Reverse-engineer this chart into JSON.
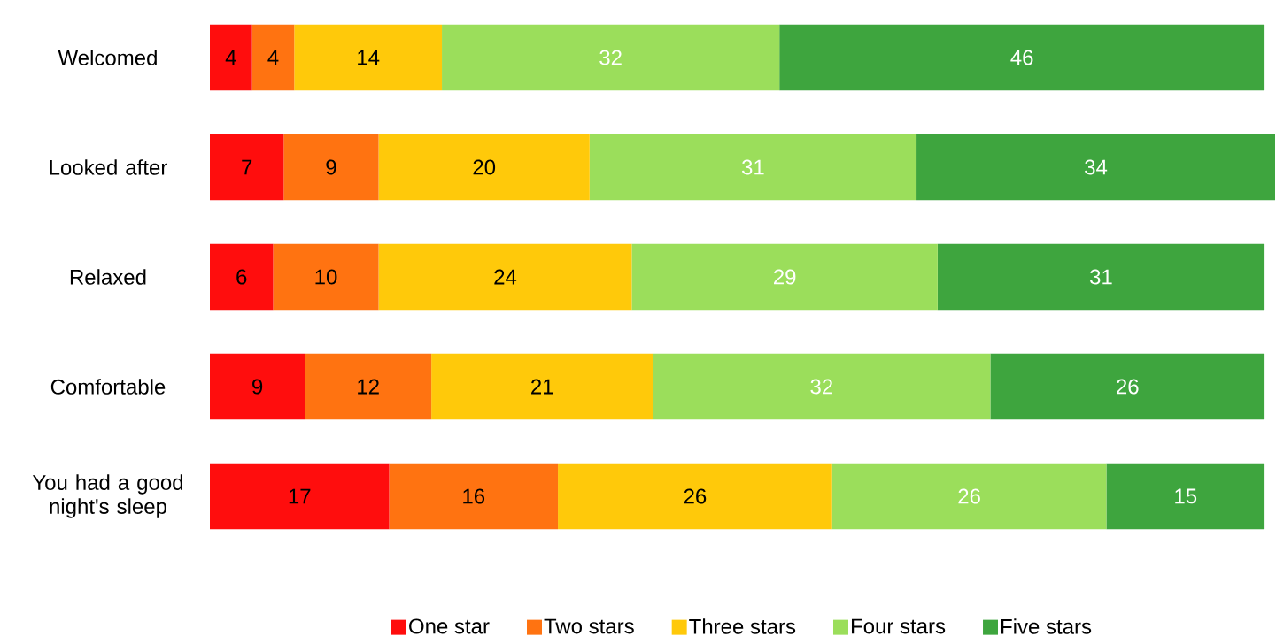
{
  "chart_data": {
    "type": "bar",
    "orientation": "horizontal",
    "stacked": true,
    "categories": [
      "Welcomed",
      "Looked after",
      "Relaxed",
      "Comfortable",
      "You had a good night's sleep"
    ],
    "series": [
      {
        "name": "One star",
        "color": "#ff0d0d",
        "values": [
          4,
          7,
          6,
          9,
          17
        ]
      },
      {
        "name": "Two stars",
        "color": "#ff7311",
        "values": [
          4,
          9,
          10,
          12,
          16
        ]
      },
      {
        "name": "Three stars",
        "color": "#ffc90a",
        "values": [
          14,
          20,
          24,
          21,
          26
        ]
      },
      {
        "name": "Four stars",
        "color": "#9bde5b",
        "values": [
          32,
          31,
          29,
          32,
          26
        ]
      },
      {
        "name": "Five stars",
        "color": "#3ea53e",
        "values": [
          46,
          34,
          31,
          26,
          15
        ]
      }
    ],
    "data_labels": true,
    "legend": "bottom",
    "tick_labels": "y"
  }
}
